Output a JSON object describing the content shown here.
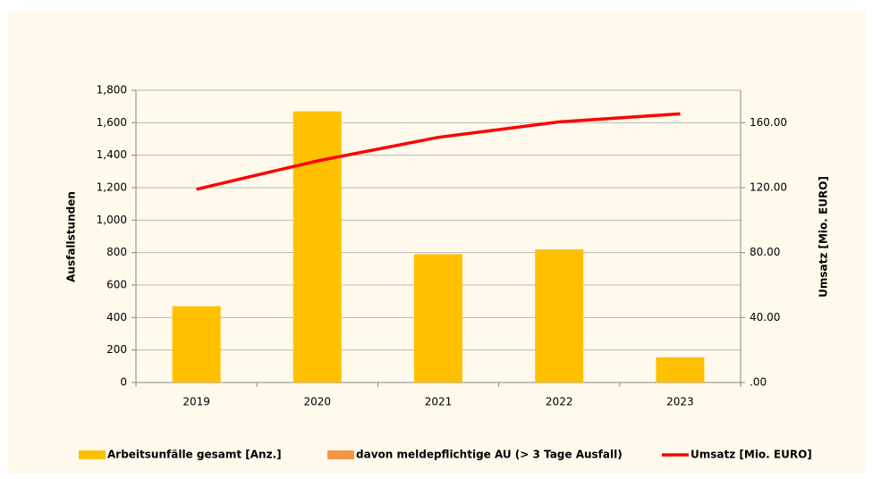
{
  "chart_data": {
    "type": "bar",
    "categories": [
      "2019",
      "2020",
      "2021",
      "2022",
      "2023"
    ],
    "y_label": "Ausfallstunden",
    "y2_label": "Umsatz [Mio. EURO]",
    "series": [
      {
        "name": "Arbeitsunfälle gesamt [Anz.]",
        "color": "#ffc000",
        "type": "bar",
        "values": [
          470,
          1670,
          790,
          820,
          155
        ]
      },
      {
        "name": "davon meldepflichtige AU (> 3 Tage Ausfall)",
        "color": "#f79646",
        "type": "bar",
        "values": [
          null,
          null,
          null,
          null,
          null
        ]
      },
      {
        "name": "Umsatz [Mio. EURO]",
        "color": "#ff0000",
        "type": "line",
        "axis": "y2",
        "values": [
          119,
          136.5,
          151,
          160.5,
          165.5
        ]
      }
    ],
    "ylim": [
      0,
      1800
    ],
    "yticks": [
      0,
      200,
      400,
      600,
      800,
      {
        "value": 1000,
        "label": "1,000"
      },
      {
        "value": 1200,
        "label": "1,200"
      },
      {
        "value": 1400,
        "label": "1,400"
      },
      {
        "value": 1600,
        "label": "1,600"
      },
      {
        "value": 1800,
        "label": "1,800"
      }
    ],
    "y2lim": [
      0,
      180
    ],
    "y2ticks": [
      {
        "value": 0,
        "label": ".00"
      },
      {
        "value": 40,
        "label": "40.00"
      },
      {
        "value": 80,
        "label": "80.00"
      },
      {
        "value": 120,
        "label": "120.00"
      },
      {
        "value": 160,
        "label": "160.00"
      }
    ],
    "grid": true,
    "legend": "bottom"
  }
}
